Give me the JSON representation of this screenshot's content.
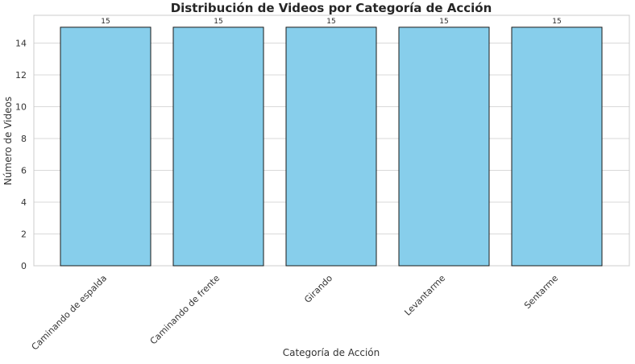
{
  "chart_data": {
    "type": "bar",
    "title": "Distribución de Videos por Categoría de Acción",
    "xlabel": "Categoría de Acción",
    "ylabel": "Número de Videos",
    "categories": [
      "Caminando de espalda",
      "Caminando de frente",
      "Girando",
      "Levantarme",
      "Sentarme"
    ],
    "values": [
      15,
      15,
      15,
      15,
      15
    ],
    "data_labels": [
      "15",
      "15",
      "15",
      "15",
      "15"
    ],
    "ylim": [
      0,
      15.75
    ],
    "yticks": [
      0,
      2,
      4,
      6,
      8,
      10,
      12,
      14
    ],
    "grid": "horizontal",
    "legend": "none",
    "bar_color": "#87CEEB",
    "edge_color": "#1a1a1a"
  }
}
